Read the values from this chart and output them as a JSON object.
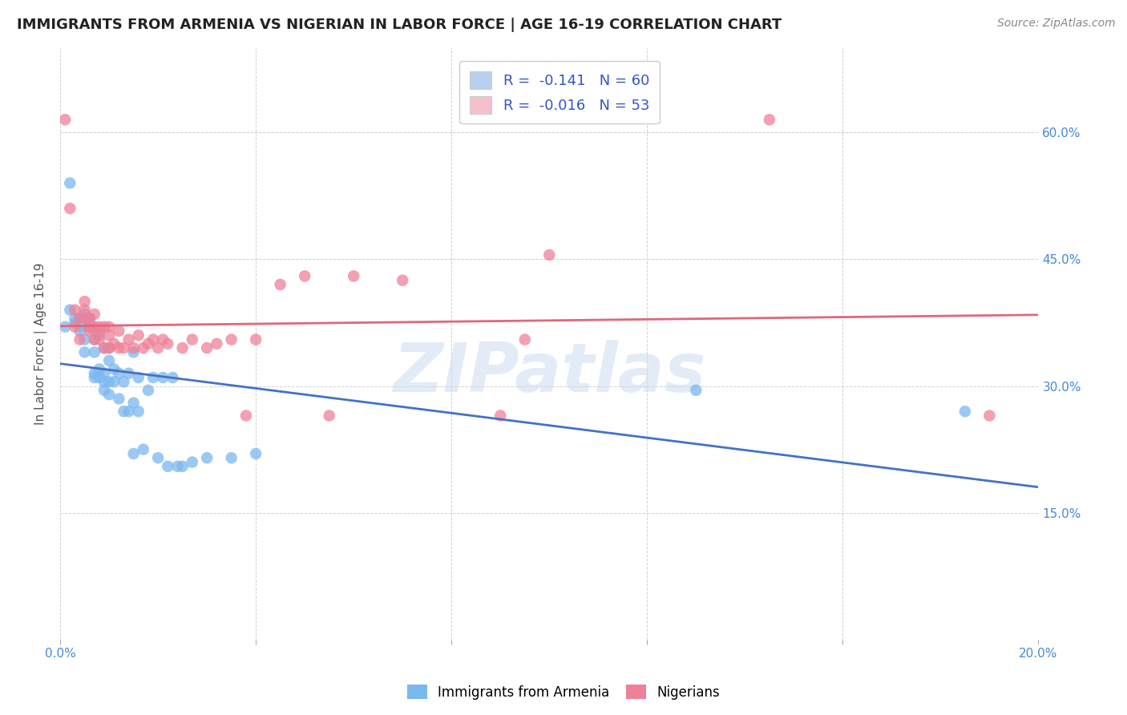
{
  "title": "IMMIGRANTS FROM ARMENIA VS NIGERIAN IN LABOR FORCE | AGE 16-19 CORRELATION CHART",
  "source": "Source: ZipAtlas.com",
  "ylabel": "In Labor Force | Age 16-19",
  "xlim": [
    0.0,
    0.2
  ],
  "ylim": [
    0.0,
    0.7
  ],
  "xticks": [
    0.0,
    0.04,
    0.08,
    0.12,
    0.16,
    0.2
  ],
  "yticks": [
    0.0,
    0.15,
    0.3,
    0.45,
    0.6
  ],
  "xticklabels": [
    "0.0%",
    "",
    "",
    "",
    "",
    "20.0%"
  ],
  "yticklabels_right": [
    "",
    "15.0%",
    "30.0%",
    "45.0%",
    "60.0%"
  ],
  "legend_entries": [
    {
      "label": "R =  -0.141   N = 60",
      "color": "#b8d0f0"
    },
    {
      "label": "R =  -0.016   N = 53",
      "color": "#f5c0cc"
    }
  ],
  "armenia_color": "#7ab8f0",
  "nigerian_color": "#f08098",
  "trendline_armenia_color": "#4472c4",
  "trendline_nigerian_color": "#e06878",
  "watermark": "ZIPatlas",
  "armenia_x": [
    0.001,
    0.002,
    0.002,
    0.003,
    0.003,
    0.004,
    0.004,
    0.004,
    0.005,
    0.005,
    0.005,
    0.006,
    0.006,
    0.006,
    0.006,
    0.006,
    0.007,
    0.007,
    0.007,
    0.007,
    0.007,
    0.008,
    0.008,
    0.008,
    0.009,
    0.009,
    0.009,
    0.009,
    0.01,
    0.01,
    0.01,
    0.01,
    0.011,
    0.011,
    0.012,
    0.012,
    0.013,
    0.013,
    0.014,
    0.014,
    0.015,
    0.015,
    0.015,
    0.016,
    0.016,
    0.017,
    0.018,
    0.019,
    0.02,
    0.021,
    0.022,
    0.023,
    0.024,
    0.025,
    0.027,
    0.03,
    0.035,
    0.04,
    0.13,
    0.185
  ],
  "armenia_y": [
    0.37,
    0.54,
    0.39,
    0.375,
    0.38,
    0.37,
    0.365,
    0.38,
    0.385,
    0.34,
    0.355,
    0.37,
    0.375,
    0.375,
    0.38,
    0.38,
    0.31,
    0.315,
    0.34,
    0.355,
    0.365,
    0.31,
    0.32,
    0.36,
    0.295,
    0.305,
    0.315,
    0.345,
    0.29,
    0.305,
    0.33,
    0.345,
    0.305,
    0.32,
    0.285,
    0.315,
    0.27,
    0.305,
    0.27,
    0.315,
    0.22,
    0.28,
    0.34,
    0.27,
    0.31,
    0.225,
    0.295,
    0.31,
    0.215,
    0.31,
    0.205,
    0.31,
    0.205,
    0.205,
    0.21,
    0.215,
    0.215,
    0.22,
    0.295,
    0.27
  ],
  "nigerian_x": [
    0.001,
    0.002,
    0.003,
    0.003,
    0.004,
    0.004,
    0.005,
    0.005,
    0.005,
    0.006,
    0.006,
    0.006,
    0.007,
    0.007,
    0.007,
    0.008,
    0.008,
    0.008,
    0.009,
    0.009,
    0.01,
    0.01,
    0.01,
    0.011,
    0.012,
    0.012,
    0.013,
    0.014,
    0.015,
    0.016,
    0.017,
    0.018,
    0.019,
    0.02,
    0.021,
    0.022,
    0.025,
    0.027,
    0.03,
    0.032,
    0.035,
    0.038,
    0.04,
    0.045,
    0.05,
    0.055,
    0.06,
    0.07,
    0.09,
    0.095,
    0.1,
    0.145,
    0.19
  ],
  "nigerian_y": [
    0.615,
    0.51,
    0.37,
    0.39,
    0.355,
    0.38,
    0.38,
    0.39,
    0.4,
    0.365,
    0.37,
    0.38,
    0.355,
    0.37,
    0.385,
    0.355,
    0.365,
    0.37,
    0.345,
    0.37,
    0.345,
    0.36,
    0.37,
    0.35,
    0.345,
    0.365,
    0.345,
    0.355,
    0.345,
    0.36,
    0.345,
    0.35,
    0.355,
    0.345,
    0.355,
    0.35,
    0.345,
    0.355,
    0.345,
    0.35,
    0.355,
    0.265,
    0.355,
    0.42,
    0.43,
    0.265,
    0.43,
    0.425,
    0.265,
    0.355,
    0.455,
    0.615,
    0.265
  ]
}
